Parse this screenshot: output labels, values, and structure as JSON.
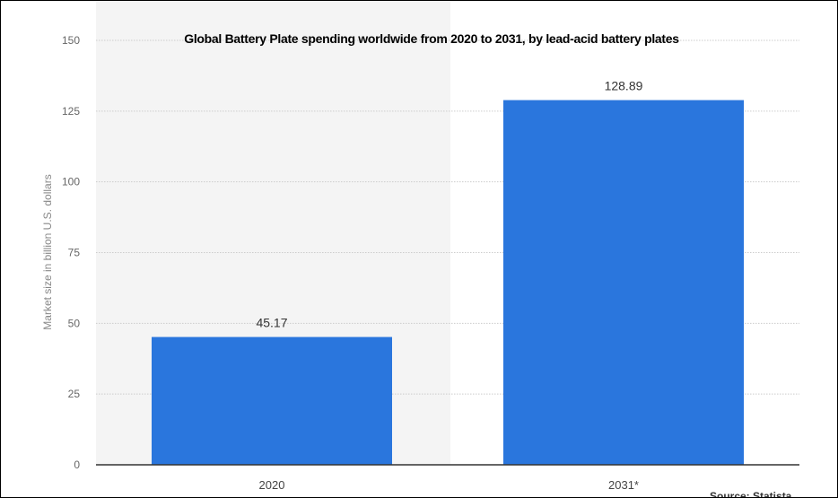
{
  "chart_data": {
    "type": "bar",
    "title": "Global Battery Plate spending worldwide from 2020 to 2031, by lead-acid battery plates",
    "xlabel": "",
    "ylabel": "Market size in billion U.S. dollars",
    "categories": [
      "2020",
      "2031*"
    ],
    "values": [
      45.17,
      128.89
    ],
    "data_labels": [
      "45.17",
      "128.89"
    ],
    "yticks": [
      0,
      25,
      50,
      75,
      100,
      125,
      150
    ],
    "ylim": [
      0,
      150
    ],
    "grid": true,
    "bar_color": "#2a76dd",
    "source": "Source: Statista"
  }
}
